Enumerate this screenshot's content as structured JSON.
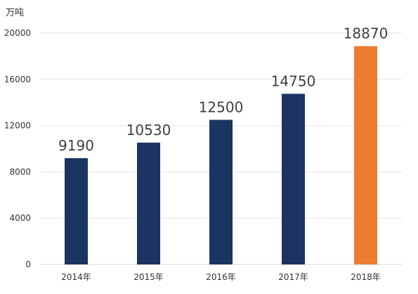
{
  "chart_data": {
    "type": "bar",
    "title": "",
    "unit_label": "万吨",
    "xlabel": "",
    "ylabel": "万吨",
    "categories": [
      "2014年",
      "2015年",
      "2016年",
      "2017年",
      "2018年"
    ],
    "values": [
      9190,
      10530,
      12500,
      14750,
      18870
    ],
    "data_labels": [
      "9190",
      "10530",
      "12500",
      "14750",
      "18870"
    ],
    "ylim": [
      0,
      20000
    ],
    "yticks": [
      0,
      4000,
      8000,
      12000,
      16000,
      20000
    ],
    "ytick_labels": [
      "0",
      "4000",
      "8000",
      "12000",
      "16000",
      "20000"
    ],
    "grid": true,
    "legend": "none",
    "colors": {
      "bar": "#1b3461",
      "highlight_bar": "#ed7d31",
      "highlight_category": "2018年"
    }
  }
}
